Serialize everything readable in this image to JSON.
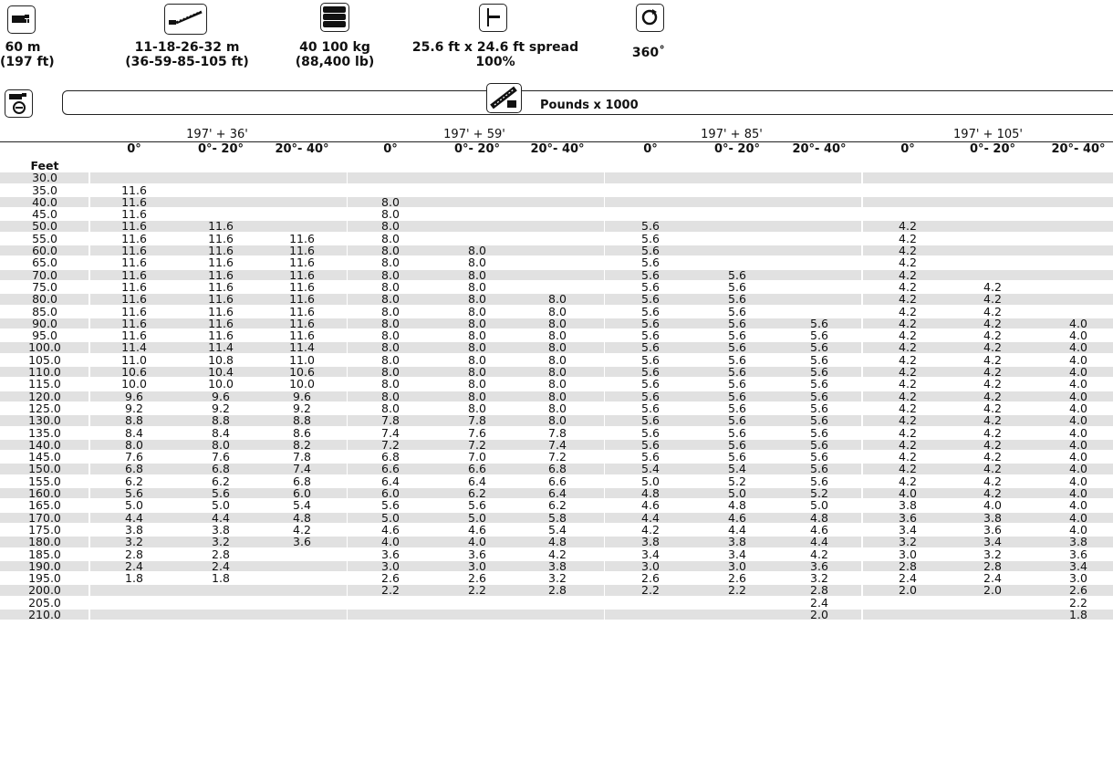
{
  "specs": [
    {
      "icon": "boom-length-icon",
      "line1": "60 m",
      "line2": "(197 ft)"
    },
    {
      "icon": "jib-length-icon",
      "line1": "11-18-26-32 m",
      "line2": "(36-59-85-105 ft)"
    },
    {
      "icon": "counterweight-icon",
      "line1": "40 100 kg",
      "line2": "(88,400 lb)"
    },
    {
      "icon": "outrigger-spread-icon",
      "line1": "25.6 ft x 24.6 ft spread",
      "line2": "100%"
    },
    {
      "icon": "rotation-360-icon",
      "line1": "360˚",
      "line2": ""
    }
  ],
  "units_label": "Pounds x 1000",
  "row_header_label": "Feet",
  "groups": [
    "197' + 36'",
    "197' + 59'",
    "197' + 85'",
    "197' + 105'"
  ],
  "angles": [
    "0°",
    "0°- 20°",
    "20°- 40°"
  ],
  "rows": [
    {
      "r": "30.0",
      "v": [
        "",
        "",
        "",
        "",
        "",
        "",
        "",
        "",
        "",
        "",
        "",
        ""
      ]
    },
    {
      "r": "35.0",
      "v": [
        "11.6",
        "",
        "",
        "",
        "",
        "",
        "",
        "",
        "",
        "",
        "",
        ""
      ]
    },
    {
      "r": "40.0",
      "v": [
        "11.6",
        "",
        "",
        "8.0",
        "",
        "",
        "",
        "",
        "",
        "",
        "",
        ""
      ]
    },
    {
      "r": "45.0",
      "v": [
        "11.6",
        "",
        "",
        "8.0",
        "",
        "",
        "",
        "",
        "",
        "",
        "",
        ""
      ]
    },
    {
      "r": "50.0",
      "v": [
        "11.6",
        "11.6",
        "",
        "8.0",
        "",
        "",
        "5.6",
        "",
        "",
        "4.2",
        "",
        ""
      ]
    },
    {
      "r": "55.0",
      "v": [
        "11.6",
        "11.6",
        "11.6",
        "8.0",
        "",
        "",
        "5.6",
        "",
        "",
        "4.2",
        "",
        ""
      ]
    },
    {
      "r": "60.0",
      "v": [
        "11.6",
        "11.6",
        "11.6",
        "8.0",
        "8.0",
        "",
        "5.6",
        "",
        "",
        "4.2",
        "",
        ""
      ]
    },
    {
      "r": "65.0",
      "v": [
        "11.6",
        "11.6",
        "11.6",
        "8.0",
        "8.0",
        "",
        "5.6",
        "",
        "",
        "4.2",
        "",
        ""
      ]
    },
    {
      "r": "70.0",
      "v": [
        "11.6",
        "11.6",
        "11.6",
        "8.0",
        "8.0",
        "",
        "5.6",
        "5.6",
        "",
        "4.2",
        "",
        ""
      ]
    },
    {
      "r": "75.0",
      "v": [
        "11.6",
        "11.6",
        "11.6",
        "8.0",
        "8.0",
        "",
        "5.6",
        "5.6",
        "",
        "4.2",
        "4.2",
        ""
      ]
    },
    {
      "r": "80.0",
      "v": [
        "11.6",
        "11.6",
        "11.6",
        "8.0",
        "8.0",
        "8.0",
        "5.6",
        "5.6",
        "",
        "4.2",
        "4.2",
        ""
      ]
    },
    {
      "r": "85.0",
      "v": [
        "11.6",
        "11.6",
        "11.6",
        "8.0",
        "8.0",
        "8.0",
        "5.6",
        "5.6",
        "",
        "4.2",
        "4.2",
        ""
      ]
    },
    {
      "r": "90.0",
      "v": [
        "11.6",
        "11.6",
        "11.6",
        "8.0",
        "8.0",
        "8.0",
        "5.6",
        "5.6",
        "5.6",
        "4.2",
        "4.2",
        "4.0"
      ]
    },
    {
      "r": "95.0",
      "v": [
        "11.6",
        "11.6",
        "11.6",
        "8.0",
        "8.0",
        "8.0",
        "5.6",
        "5.6",
        "5.6",
        "4.2",
        "4.2",
        "4.0"
      ]
    },
    {
      "r": "100.0",
      "v": [
        "11.4",
        "11.4",
        "11.4",
        "8.0",
        "8.0",
        "8.0",
        "5.6",
        "5.6",
        "5.6",
        "4.2",
        "4.2",
        "4.0"
      ]
    },
    {
      "r": "105.0",
      "v": [
        "11.0",
        "10.8",
        "11.0",
        "8.0",
        "8.0",
        "8.0",
        "5.6",
        "5.6",
        "5.6",
        "4.2",
        "4.2",
        "4.0"
      ]
    },
    {
      "r": "110.0",
      "v": [
        "10.6",
        "10.4",
        "10.6",
        "8.0",
        "8.0",
        "8.0",
        "5.6",
        "5.6",
        "5.6",
        "4.2",
        "4.2",
        "4.0"
      ]
    },
    {
      "r": "115.0",
      "v": [
        "10.0",
        "10.0",
        "10.0",
        "8.0",
        "8.0",
        "8.0",
        "5.6",
        "5.6",
        "5.6",
        "4.2",
        "4.2",
        "4.0"
      ]
    },
    {
      "r": "120.0",
      "v": [
        "9.6",
        "9.6",
        "9.6",
        "8.0",
        "8.0",
        "8.0",
        "5.6",
        "5.6",
        "5.6",
        "4.2",
        "4.2",
        "4.0"
      ]
    },
    {
      "r": "125.0",
      "v": [
        "9.2",
        "9.2",
        "9.2",
        "8.0",
        "8.0",
        "8.0",
        "5.6",
        "5.6",
        "5.6",
        "4.2",
        "4.2",
        "4.0"
      ]
    },
    {
      "r": "130.0",
      "v": [
        "8.8",
        "8.8",
        "8.8",
        "7.8",
        "7.8",
        "8.0",
        "5.6",
        "5.6",
        "5.6",
        "4.2",
        "4.2",
        "4.0"
      ]
    },
    {
      "r": "135.0",
      "v": [
        "8.4",
        "8.4",
        "8.6",
        "7.4",
        "7.6",
        "7.8",
        "5.6",
        "5.6",
        "5.6",
        "4.2",
        "4.2",
        "4.0"
      ]
    },
    {
      "r": "140.0",
      "v": [
        "8.0",
        "8.0",
        "8.2",
        "7.2",
        "7.2",
        "7.4",
        "5.6",
        "5.6",
        "5.6",
        "4.2",
        "4.2",
        "4.0"
      ]
    },
    {
      "r": "145.0",
      "v": [
        "7.6",
        "7.6",
        "7.8",
        "6.8",
        "7.0",
        "7.2",
        "5.6",
        "5.6",
        "5.6",
        "4.2",
        "4.2",
        "4.0"
      ]
    },
    {
      "r": "150.0",
      "v": [
        "6.8",
        "6.8",
        "7.4",
        "6.6",
        "6.6",
        "6.8",
        "5.4",
        "5.4",
        "5.6",
        "4.2",
        "4.2",
        "4.0"
      ]
    },
    {
      "r": "155.0",
      "v": [
        "6.2",
        "6.2",
        "6.8",
        "6.4",
        "6.4",
        "6.6",
        "5.0",
        "5.2",
        "5.6",
        "4.2",
        "4.2",
        "4.0"
      ]
    },
    {
      "r": "160.0",
      "v": [
        "5.6",
        "5.6",
        "6.0",
        "6.0",
        "6.2",
        "6.4",
        "4.8",
        "5.0",
        "5.2",
        "4.0",
        "4.2",
        "4.0"
      ]
    },
    {
      "r": "165.0",
      "v": [
        "5.0",
        "5.0",
        "5.4",
        "5.6",
        "5.6",
        "6.2",
        "4.6",
        "4.8",
        "5.0",
        "3.8",
        "4.0",
        "4.0"
      ]
    },
    {
      "r": "170.0",
      "v": [
        "4.4",
        "4.4",
        "4.8",
        "5.0",
        "5.0",
        "5.8",
        "4.4",
        "4.6",
        "4.8",
        "3.6",
        "3.8",
        "4.0"
      ]
    },
    {
      "r": "175.0",
      "v": [
        "3.8",
        "3.8",
        "4.2",
        "4.6",
        "4.6",
        "5.4",
        "4.2",
        "4.4",
        "4.6",
        "3.4",
        "3.6",
        "4.0"
      ]
    },
    {
      "r": "180.0",
      "v": [
        "3.2",
        "3.2",
        "3.6",
        "4.0",
        "4.0",
        "4.8",
        "3.8",
        "3.8",
        "4.4",
        "3.2",
        "3.4",
        "3.8"
      ]
    },
    {
      "r": "185.0",
      "v": [
        "2.8",
        "2.8",
        "",
        "3.6",
        "3.6",
        "4.2",
        "3.4",
        "3.4",
        "4.2",
        "3.0",
        "3.2",
        "3.6"
      ]
    },
    {
      "r": "190.0",
      "v": [
        "2.4",
        "2.4",
        "",
        "3.0",
        "3.0",
        "3.8",
        "3.0",
        "3.0",
        "3.6",
        "2.8",
        "2.8",
        "3.4"
      ]
    },
    {
      "r": "195.0",
      "v": [
        "1.8",
        "1.8",
        "",
        "2.6",
        "2.6",
        "3.2",
        "2.6",
        "2.6",
        "3.2",
        "2.4",
        "2.4",
        "3.0"
      ]
    },
    {
      "r": "200.0",
      "v": [
        "",
        "",
        "",
        "2.2",
        "2.2",
        "2.8",
        "2.2",
        "2.2",
        "2.8",
        "2.0",
        "2.0",
        "2.6"
      ]
    },
    {
      "r": "205.0",
      "v": [
        "",
        "",
        "",
        "",
        "",
        "",
        "",
        "",
        "2.4",
        "",
        "",
        "2.2"
      ]
    },
    {
      "r": "210.0",
      "v": [
        "",
        "",
        "",
        "",
        "",
        "",
        "",
        "",
        "2.0",
        "",
        "",
        "1.8"
      ]
    }
  ]
}
